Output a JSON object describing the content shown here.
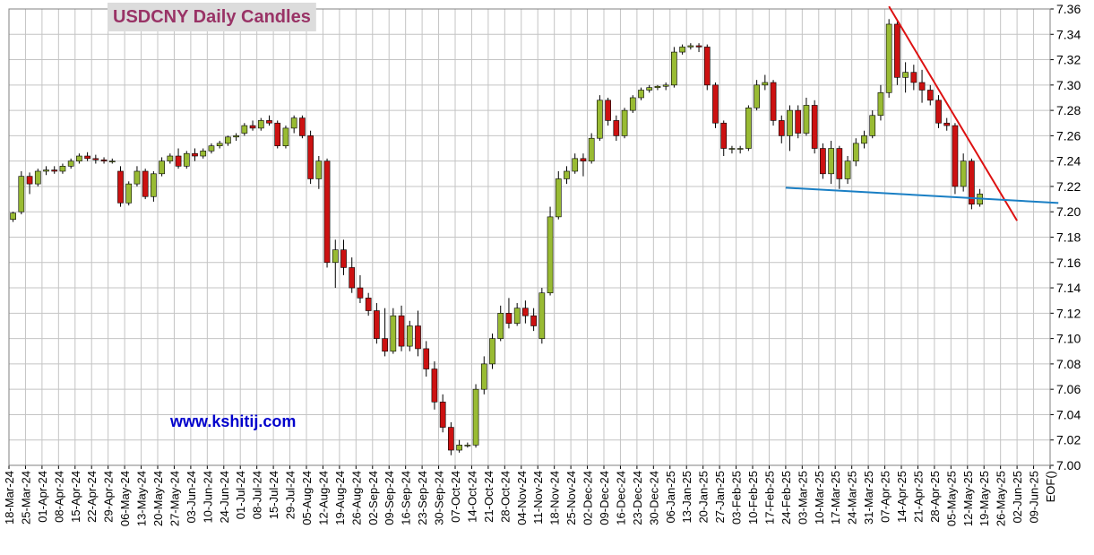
{
  "chart_data": {
    "type": "candlestick",
    "title": "USDCNY Daily Candles",
    "watermark": "www.kshitij.com",
    "up_color": "#99bb33",
    "down_color": "#cc1111",
    "grid": true,
    "categories": [
      "18-Mar-24",
      "25-Mar-24",
      "01-Apr-24",
      "08-Apr-24",
      "15-Apr-24",
      "22-Apr-24",
      "29-Apr-24",
      "06-May-24",
      "13-May-24",
      "20-May-24",
      "27-May-24",
      "03-Jun-24",
      "10-Jun-24",
      "24-Jun-24",
      "01-Jul-24",
      "08-Jul-24",
      "15-Jul-24",
      "29-Jul-24",
      "05-Aug-24",
      "12-Aug-24",
      "19-Aug-24",
      "26-Aug-24",
      "02-Sep-24",
      "09-Sep-24",
      "16-Sep-24",
      "23-Sep-24",
      "30-Sep-24",
      "07-Oct-24",
      "14-Oct-24",
      "21-Oct-24",
      "28-Oct-24",
      "04-Nov-24",
      "11-Nov-24",
      "18-Nov-24",
      "25-Nov-24",
      "02-Dec-24",
      "09-Dec-24",
      "16-Dec-24",
      "23-Dec-24",
      "30-Dec-24",
      "06-Jan-25",
      "13-Jan-25",
      "20-Jan-25",
      "27-Jan-25",
      "03-Feb-25",
      "10-Feb-25",
      "17-Feb-25",
      "24-Feb-25",
      "03-Mar-25",
      "10-Mar-25",
      "17-Mar-25",
      "24-Mar-25",
      "31-Mar-25",
      "07-Apr-25",
      "14-Apr-25",
      "21-Apr-25",
      "28-Apr-25",
      "05-May-25",
      "12-May-25",
      "19-May-25",
      "26-May-25",
      "02-Jun-25",
      "09-Jun-25",
      "EOF()"
    ],
    "ohlc": [
      [
        7.194,
        7.2,
        7.192,
        7.199
      ],
      [
        7.2,
        7.232,
        7.198,
        7.228
      ],
      [
        7.228,
        7.231,
        7.214,
        7.222
      ],
      [
        7.222,
        7.234,
        7.22,
        7.232
      ],
      [
        7.232,
        7.236,
        7.229,
        7.233
      ],
      [
        7.233,
        7.236,
        7.23,
        7.232
      ],
      [
        7.232,
        7.238,
        7.23,
        7.236
      ],
      [
        7.236,
        7.242,
        7.234,
        7.24
      ],
      [
        7.24,
        7.246,
        7.238,
        7.244
      ],
      [
        7.244,
        7.247,
        7.24,
        7.242
      ],
      [
        7.242,
        7.245,
        7.238,
        7.241
      ],
      [
        7.241,
        7.243,
        7.238,
        7.24
      ],
      [
        7.24,
        7.242,
        7.238,
        7.24
      ],
      [
        7.232,
        7.236,
        7.204,
        7.207
      ],
      [
        7.207,
        7.224,
        7.205,
        7.222
      ],
      [
        7.222,
        7.236,
        7.22,
        7.232
      ],
      [
        7.232,
        7.234,
        7.21,
        7.212
      ],
      [
        7.212,
        7.232,
        7.208,
        7.23
      ],
      [
        7.23,
        7.243,
        7.228,
        7.24
      ],
      [
        7.24,
        7.246,
        7.238,
        7.244
      ],
      [
        7.244,
        7.25,
        7.234,
        7.236
      ],
      [
        7.236,
        7.248,
        7.234,
        7.246
      ],
      [
        7.246,
        7.25,
        7.24,
        7.244
      ],
      [
        7.244,
        7.25,
        7.242,
        7.248
      ],
      [
        7.248,
        7.254,
        7.246,
        7.252
      ],
      [
        7.252,
        7.256,
        7.25,
        7.254
      ],
      [
        7.254,
        7.26,
        7.252,
        7.259
      ],
      [
        7.259,
        7.262,
        7.256,
        7.26
      ],
      [
        7.262,
        7.27,
        7.26,
        7.268
      ],
      [
        7.268,
        7.272,
        7.264,
        7.266
      ],
      [
        7.266,
        7.274,
        7.264,
        7.272
      ],
      [
        7.272,
        7.276,
        7.268,
        7.27
      ],
      [
        7.27,
        7.272,
        7.25,
        7.252
      ],
      [
        7.252,
        7.268,
        7.25,
        7.266
      ],
      [
        7.266,
        7.276,
        7.262,
        7.274
      ],
      [
        7.274,
        7.276,
        7.258,
        7.26
      ],
      [
        7.26,
        7.264,
        7.222,
        7.226
      ],
      [
        7.226,
        7.244,
        7.218,
        7.24
      ],
      [
        7.24,
        7.242,
        7.156,
        7.16
      ],
      [
        7.16,
        7.178,
        7.14,
        7.17
      ],
      [
        7.17,
        7.178,
        7.15,
        7.156
      ],
      [
        7.156,
        7.164,
        7.136,
        7.14
      ],
      [
        7.14,
        7.15,
        7.128,
        7.132
      ],
      [
        7.132,
        7.136,
        7.118,
        7.122
      ],
      [
        7.122,
        7.128,
        7.096,
        7.1
      ],
      [
        7.1,
        7.124,
        7.086,
        7.09
      ],
      [
        7.09,
        7.124,
        7.088,
        7.118
      ],
      [
        7.118,
        7.126,
        7.09,
        7.094
      ],
      [
        7.094,
        7.114,
        7.09,
        7.11
      ],
      [
        7.11,
        7.122,
        7.086,
        7.092
      ],
      [
        7.092,
        7.098,
        7.07,
        7.076
      ],
      [
        7.076,
        7.082,
        7.044,
        7.05
      ],
      [
        7.05,
        7.056,
        7.026,
        7.03
      ],
      [
        7.03,
        7.034,
        7.008,
        7.012
      ],
      [
        7.012,
        7.02,
        7.01,
        7.016
      ],
      [
        7.016,
        7.018,
        7.014,
        7.016
      ],
      [
        7.016,
        7.064,
        7.014,
        7.06
      ],
      [
        7.06,
        7.086,
        7.056,
        7.08
      ],
      [
        7.08,
        7.104,
        7.076,
        7.1
      ],
      [
        7.1,
        7.126,
        7.098,
        7.12
      ],
      [
        7.12,
        7.132,
        7.108,
        7.112
      ],
      [
        7.112,
        7.128,
        7.11,
        7.124
      ],
      [
        7.124,
        7.13,
        7.112,
        7.118
      ],
      [
        7.118,
        7.124,
        7.106,
        7.11
      ],
      [
        7.1,
        7.14,
        7.096,
        7.136
      ],
      [
        7.136,
        7.204,
        7.134,
        7.196
      ],
      [
        7.196,
        7.232,
        7.194,
        7.226
      ],
      [
        7.226,
        7.236,
        7.222,
        7.232
      ],
      [
        7.232,
        7.246,
        7.23,
        7.242
      ],
      [
        7.242,
        7.246,
        7.228,
        7.24
      ],
      [
        7.24,
        7.262,
        7.238,
        7.258
      ],
      [
        7.258,
        7.292,
        7.256,
        7.288
      ],
      [
        7.288,
        7.29,
        7.268,
        7.272
      ],
      [
        7.272,
        7.276,
        7.256,
        7.26
      ],
      [
        7.26,
        7.282,
        7.258,
        7.28
      ],
      [
        7.28,
        7.292,
        7.278,
        7.29
      ],
      [
        7.29,
        7.298,
        7.288,
        7.296
      ],
      [
        7.296,
        7.3,
        7.294,
        7.298
      ],
      [
        7.298,
        7.3,
        7.296,
        7.299
      ],
      [
        7.299,
        7.302,
        7.296,
        7.3
      ],
      [
        7.3,
        7.33,
        7.298,
        7.326
      ],
      [
        7.326,
        7.332,
        7.324,
        7.33
      ],
      [
        7.33,
        7.333,
        7.328,
        7.331
      ],
      [
        7.331,
        7.333,
        7.326,
        7.33
      ],
      [
        7.33,
        7.332,
        7.296,
        7.3
      ],
      [
        7.3,
        7.302,
        7.266,
        7.27
      ],
      [
        7.27,
        7.272,
        7.244,
        7.25
      ],
      [
        7.25,
        7.252,
        7.246,
        7.25
      ],
      [
        7.25,
        7.252,
        7.246,
        7.25
      ],
      [
        7.25,
        7.284,
        7.248,
        7.282
      ],
      [
        7.282,
        7.304,
        7.28,
        7.3
      ],
      [
        7.3,
        7.308,
        7.296,
        7.302
      ],
      [
        7.302,
        7.304,
        7.268,
        7.272
      ],
      [
        7.272,
        7.276,
        7.254,
        7.26
      ],
      [
        7.26,
        7.284,
        7.248,
        7.28
      ],
      [
        7.28,
        7.284,
        7.258,
        7.262
      ],
      [
        7.262,
        7.29,
        7.26,
        7.284
      ],
      [
        7.284,
        7.288,
        7.246,
        7.25
      ],
      [
        7.25,
        7.254,
        7.226,
        7.23
      ],
      [
        7.23,
        7.256,
        7.222,
        7.25
      ],
      [
        7.25,
        7.252,
        7.218,
        7.226
      ],
      [
        7.226,
        7.244,
        7.222,
        7.24
      ],
      [
        7.24,
        7.258,
        7.236,
        7.254
      ],
      [
        7.254,
        7.264,
        7.25,
        7.26
      ],
      [
        7.26,
        7.28,
        7.258,
        7.276
      ],
      [
        7.276,
        7.3,
        7.272,
        7.294
      ],
      [
        7.294,
        7.352,
        7.29,
        7.348
      ],
      [
        7.348,
        7.35,
        7.3,
        7.306
      ],
      [
        7.306,
        7.318,
        7.294,
        7.31
      ],
      [
        7.31,
        7.316,
        7.296,
        7.302
      ],
      [
        7.302,
        7.312,
        7.286,
        7.296
      ],
      [
        7.296,
        7.3,
        7.284,
        7.288
      ],
      [
        7.288,
        7.292,
        7.266,
        7.27
      ],
      [
        7.27,
        7.274,
        7.264,
        7.268
      ],
      [
        7.268,
        7.27,
        7.214,
        7.22
      ],
      [
        7.22,
        7.246,
        7.216,
        7.24
      ],
      [
        7.24,
        7.242,
        7.202,
        7.206
      ],
      [
        7.206,
        7.218,
        7.204,
        7.214
      ]
    ],
    "trendlines": [
      {
        "color": "#dd1111",
        "x": [
          106,
          121.5
        ],
        "y": [
          7.362,
          7.193
        ]
      },
      {
        "color": "#1a7fc4",
        "x": [
          93.5,
          126.5
        ],
        "y": [
          7.219,
          7.207
        ]
      }
    ],
    "ylim": [
      7.0,
      7.36
    ],
    "yticks": [
      {
        "value": 7.0,
        "label": "7.00"
      },
      7.02,
      7.04,
      7.06,
      7.08,
      {
        "value": 7.1,
        "label": "7.10"
      },
      7.12,
      7.14,
      7.16,
      7.18,
      {
        "value": 7.2,
        "label": "7.20"
      },
      7.22,
      7.24,
      7.26,
      7.28,
      {
        "value": 7.3,
        "label": "7.30"
      },
      7.32,
      7.34,
      7.36
    ]
  }
}
